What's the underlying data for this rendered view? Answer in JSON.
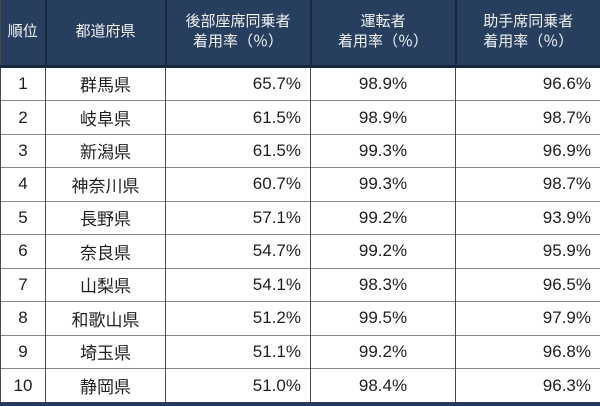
{
  "colors": {
    "header_bg": "#273e5f",
    "header_divider": "#16263f",
    "header_text": "#f2f4f7",
    "body_bg": "#ffffff",
    "body_text": "#1f1f1f",
    "vertical_border": "#4a4a4a",
    "horizontal_border": "#8a8a8a",
    "bottom_bar": "#26395a"
  },
  "table": {
    "headers": {
      "rank": "順位",
      "prefecture": "都道府県",
      "rear_line1": "後部座席同乗者",
      "rear_line2": "着用率（％）",
      "driver_line1": "運転者",
      "driver_line2": "着用率（％）",
      "front_line1": "助手席同乗者",
      "front_line2": "着用率（％）"
    },
    "rows": [
      {
        "rank": "1",
        "prefecture": "群馬県",
        "rear": "65.7%",
        "driver": "98.9%",
        "front": "96.6%"
      },
      {
        "rank": "2",
        "prefecture": "岐阜県",
        "rear": "61.5%",
        "driver": "98.9%",
        "front": "98.7%"
      },
      {
        "rank": "3",
        "prefecture": "新潟県",
        "rear": "61.5%",
        "driver": "99.3%",
        "front": "96.9%"
      },
      {
        "rank": "4",
        "prefecture": "神奈川県",
        "rear": "60.7%",
        "driver": "99.3%",
        "front": "98.7%"
      },
      {
        "rank": "5",
        "prefecture": "長野県",
        "rear": "57.1%",
        "driver": "99.2%",
        "front": "93.9%"
      },
      {
        "rank": "6",
        "prefecture": "奈良県",
        "rear": "54.7%",
        "driver": "99.2%",
        "front": "95.9%"
      },
      {
        "rank": "7",
        "prefecture": "山梨県",
        "rear": "54.1%",
        "driver": "98.3%",
        "front": "96.5%"
      },
      {
        "rank": "8",
        "prefecture": "和歌山県",
        "rear": "51.2%",
        "driver": "99.5%",
        "front": "97.9%"
      },
      {
        "rank": "9",
        "prefecture": "埼玉県",
        "rear": "51.1%",
        "driver": "99.2%",
        "front": "96.8%"
      },
      {
        "rank": "10",
        "prefecture": "静岡県",
        "rear": "51.0%",
        "driver": "98.4%",
        "front": "96.3%"
      }
    ]
  },
  "chart_data": {
    "type": "table",
    "title": "",
    "columns": [
      "順位",
      "都道府県",
      "後部座席同乗者着用率（％）",
      "運転者着用率（％）",
      "助手席同乗者着用率（％）"
    ],
    "rows": [
      [
        1,
        "群馬県",
        65.7,
        98.9,
        96.6
      ],
      [
        2,
        "岐阜県",
        61.5,
        98.9,
        98.7
      ],
      [
        3,
        "新潟県",
        61.5,
        99.3,
        96.9
      ],
      [
        4,
        "神奈川県",
        60.7,
        99.3,
        98.7
      ],
      [
        5,
        "長野県",
        57.1,
        99.2,
        93.9
      ],
      [
        6,
        "奈良県",
        54.7,
        99.2,
        95.9
      ],
      [
        7,
        "山梨県",
        54.1,
        98.3,
        96.5
      ],
      [
        8,
        "和歌山県",
        51.2,
        99.5,
        97.9
      ],
      [
        9,
        "埼玉県",
        51.1,
        99.2,
        96.8
      ],
      [
        10,
        "静岡県",
        51.0,
        98.4,
        96.3
      ]
    ]
  }
}
